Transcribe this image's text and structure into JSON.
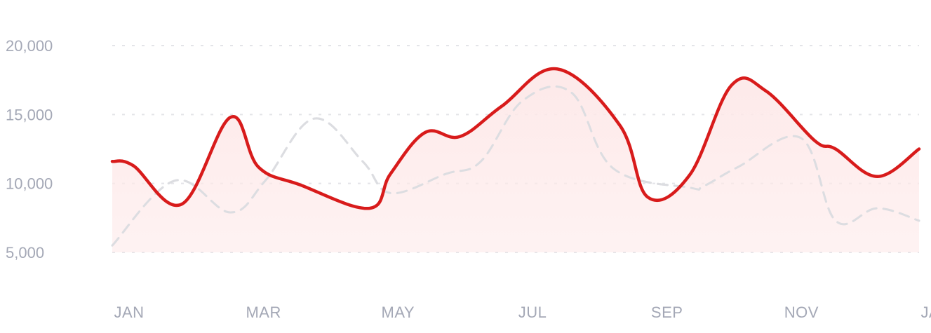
{
  "chart_data": {
    "type": "line",
    "title": "",
    "xlabel": "",
    "ylabel": "",
    "ylim": [
      5000,
      20000
    ],
    "y_ticks": [
      "5,000",
      "10,000",
      "15,000",
      "20,000"
    ],
    "y_tick_values": [
      5000,
      10000,
      15000,
      20000
    ],
    "x_tick_labels": [
      "JAN",
      "MAR",
      "MAY",
      "JUL",
      "SEP",
      "NOV",
      "JAN"
    ],
    "grid": true,
    "legend": "none",
    "series": [
      {
        "style": "solid-filled",
        "color": "#d81b1b",
        "fill": "#fde8e8",
        "x": [
          0,
          0.3,
          1.0,
          1.7,
          2.1,
          2.7,
          3.7,
          4.0,
          4.5,
          5.0,
          5.6,
          6.4,
          7.3,
          7.7,
          8.3,
          8.9,
          9.4,
          10.1,
          10.4,
          11.0,
          11.6
        ],
        "values": [
          11600,
          11300,
          8500,
          14800,
          11200,
          9900,
          8200,
          10700,
          13700,
          13400,
          15600,
          18300,
          14200,
          9000,
          10600,
          17100,
          16700,
          13100,
          12500,
          10500,
          12500
        ]
      },
      {
        "style": "dashed",
        "color": "#dcdde1",
        "x": [
          0,
          0.9,
          1.7,
          2.2,
          2.9,
          3.6,
          4.0,
          4.8,
          5.3,
          5.9,
          6.6,
          7.2,
          8.3,
          8.5,
          9.0,
          9.9,
          10.4,
          11.0,
          11.6
        ],
        "values": [
          5500,
          10200,
          7900,
          10200,
          14700,
          11600,
          9300,
          10700,
          11600,
          16000,
          16600,
          11100,
          9700,
          9800,
          11200,
          13300,
          7300,
          8200,
          7300
        ]
      }
    ]
  }
}
